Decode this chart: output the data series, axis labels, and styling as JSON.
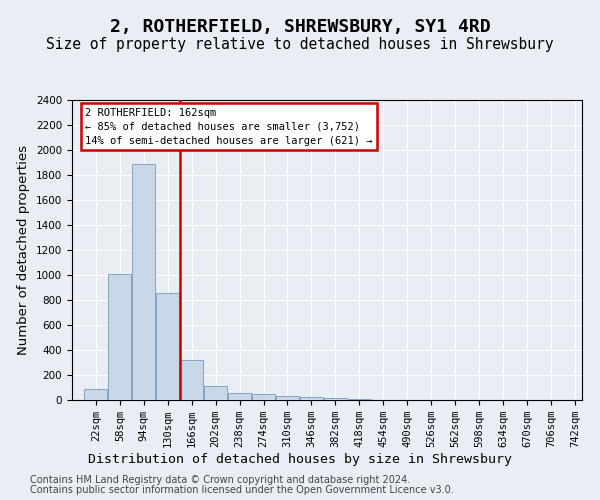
{
  "title": "2, ROTHERFIELD, SHREWSBURY, SY1 4RD",
  "subtitle": "Size of property relative to detached houses in Shrewsbury",
  "xlabel": "Distribution of detached houses by size in Shrewsbury",
  "ylabel": "Number of detached properties",
  "bar_color": "#c8d8e8",
  "bar_edge_color": "#7799bb",
  "marker_line_color": "#cc0000",
  "annotation_line1": "2 ROTHERFIELD: 162sqm",
  "annotation_line2": "← 85% of detached houses are smaller (3,752)",
  "annotation_line3": "14% of semi-detached houses are larger (621) →",
  "footer_line1": "Contains HM Land Registry data © Crown copyright and database right 2024.",
  "footer_line2": "Contains public sector information licensed under the Open Government Licence v3.0.",
  "bins_start": [
    22,
    58,
    94,
    130,
    166,
    202,
    238,
    274,
    310,
    346,
    382,
    418,
    454,
    490,
    526,
    562,
    598,
    634,
    670,
    706
  ],
  "bin_width": 36,
  "last_label": "742sqm",
  "counts": [
    90,
    1010,
    1890,
    860,
    320,
    115,
    55,
    45,
    35,
    25,
    20,
    5,
    3,
    2,
    1,
    1,
    1,
    0,
    0,
    0
  ],
  "ylim": [
    0,
    2400
  ],
  "background_color": "#e8eef4",
  "grid_color": "#ffffff",
  "title_fontsize": 13,
  "subtitle_fontsize": 10.5,
  "axis_label_fontsize": 9.5,
  "tick_fontsize": 7.5,
  "footer_fontsize": 7
}
